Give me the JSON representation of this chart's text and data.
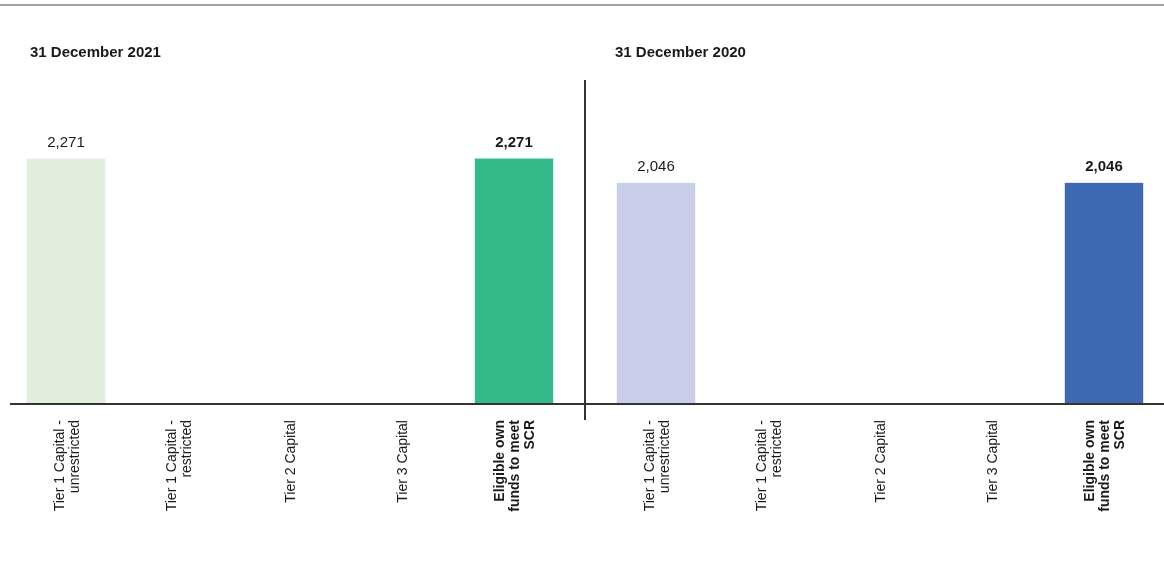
{
  "chart_data": [
    {
      "type": "bar",
      "title": "31 December 2021",
      "categories": [
        "Tier 1 Capital - unrestricted",
        "Tier 1 Capital - restricted",
        "Tier 2 Capital",
        "Tier 3 Capital",
        "Eligible own funds to meet SCR"
      ],
      "values": [
        2271,
        null,
        null,
        null,
        2271
      ],
      "colors": [
        "#e2eedc",
        null,
        null,
        null,
        "#34b98a"
      ],
      "tick_labels": "x",
      "value_labels": [
        "2,271",
        null,
        null,
        null,
        "2,271"
      ]
    },
    {
      "type": "bar",
      "title": "31 December 2020",
      "categories": [
        "Tier 1 Capital - unrestricted",
        "Tier 1 Capital - restricted",
        "Tier 2 Capital",
        "Tier 3 Capital",
        "Eligible own funds to meet SCR"
      ],
      "values": [
        2046,
        null,
        null,
        null,
        2046
      ],
      "colors": [
        "#c8cde8",
        null,
        null,
        null,
        "#3e68b2"
      ],
      "tick_labels": "x",
      "value_labels": [
        "2,046",
        null,
        null,
        null,
        "2,046"
      ]
    }
  ]
}
